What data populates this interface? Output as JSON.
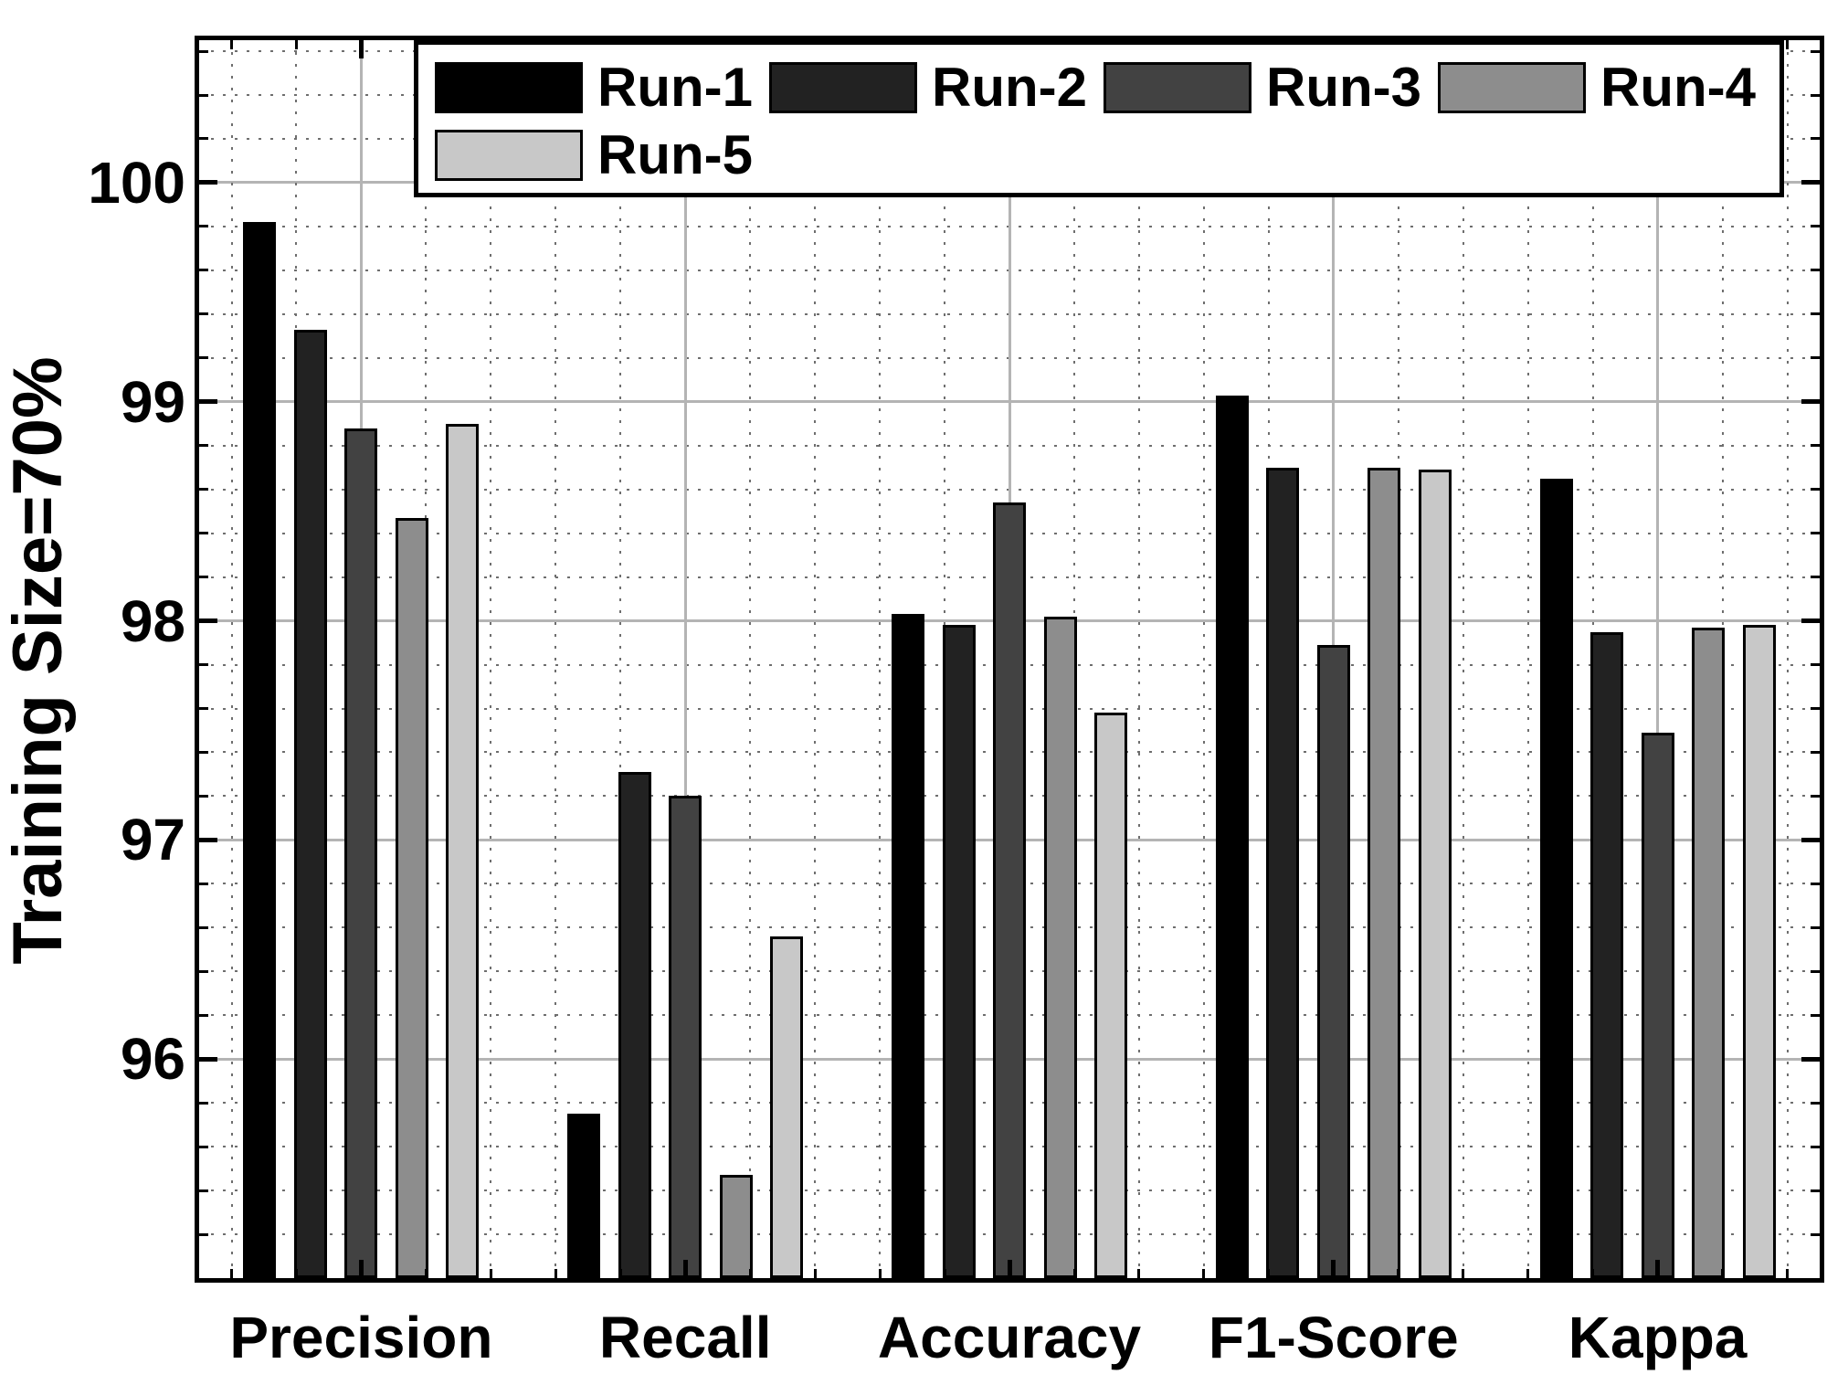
{
  "chart_data": {
    "type": "bar",
    "title": "",
    "xlabel": "",
    "ylabel": "Training Size=70%",
    "categories": [
      "Precision",
      "Recall",
      "Accuracy",
      "F1-Score",
      "Kappa"
    ],
    "series": [
      {
        "name": "Run-1",
        "color": "#000000",
        "values": [
          99.82,
          95.75,
          98.03,
          99.03,
          98.65
        ]
      },
      {
        "name": "Run-2",
        "color": "#222222",
        "values": [
          99.33,
          97.31,
          97.98,
          98.7,
          97.95
        ]
      },
      {
        "name": "Run-3",
        "color": "#424242",
        "values": [
          98.88,
          97.2,
          98.54,
          97.89,
          97.49
        ]
      },
      {
        "name": "Run-4",
        "color": "#8d8d8d",
        "values": [
          98.47,
          95.47,
          98.02,
          98.7,
          97.97
        ]
      },
      {
        "name": "Run-5",
        "color": "#c8c8c8",
        "values": [
          98.9,
          96.56,
          97.58,
          98.69,
          97.98
        ]
      }
    ],
    "ylim": [
      95,
      100.65
    ],
    "yticks": [
      96,
      97,
      98,
      99,
      100
    ],
    "ytick_labels": [
      "96",
      "97",
      "98",
      "99",
      "100"
    ],
    "minor_step": 0.2,
    "grid": "major-solid, minor-dotted, full box axes with inward ticks",
    "legend_position": "top-inside-two-rows",
    "legend_row1": [
      "Run-1",
      "Run-2",
      "Run-3",
      "Run-4"
    ],
    "legend_row2": [
      "Run-5"
    ],
    "colors": {
      "axis": "#000000",
      "major_grid": "#b4b4b4",
      "minor_grid": "#6e6e6e",
      "background": "#ffffff"
    }
  }
}
